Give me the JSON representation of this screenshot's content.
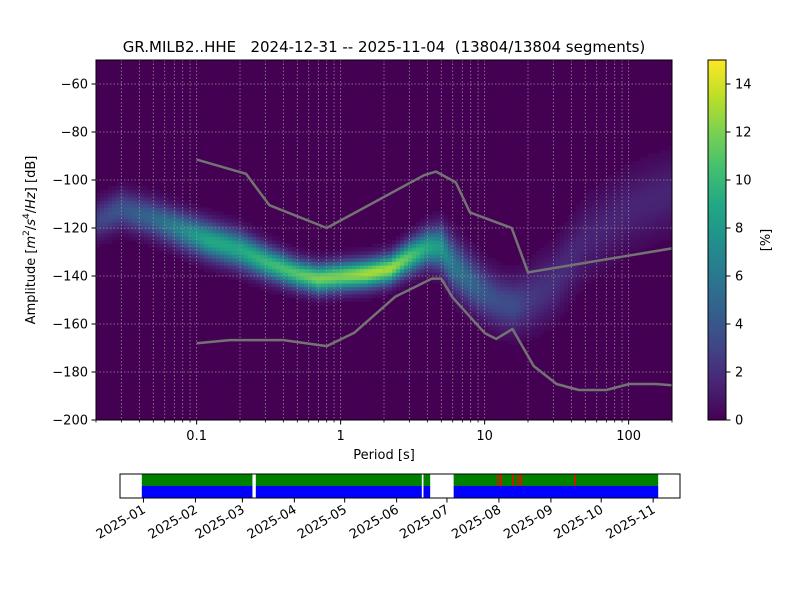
{
  "chart_data": [
    {
      "type": "heatmap",
      "title": "GR.MILB2..HHE   2024-12-31 -- 2025-11-04  (13804/13804 segments)",
      "xlabel": "Period [s]",
      "ylabel": "Amplitude [m²/s⁴/Hz] [dB]",
      "xscale": "log",
      "xlim": [
        0.02,
        200
      ],
      "ylim": [
        -200,
        -50
      ],
      "x_ticks": [
        {
          "value": 0.1,
          "label": "0.1"
        },
        {
          "value": 1,
          "label": "1"
        },
        {
          "value": 10,
          "label": "10"
        },
        {
          "value": 100,
          "label": "100"
        }
      ],
      "y_ticks": [
        {
          "value": -60,
          "label": "−60"
        },
        {
          "value": -80,
          "label": "−80"
        },
        {
          "value": -100,
          "label": "−100"
        },
        {
          "value": -120,
          "label": "−120"
        },
        {
          "value": -140,
          "label": "−140"
        },
        {
          "value": -160,
          "label": "−160"
        },
        {
          "value": -180,
          "label": "−180"
        },
        {
          "value": -200,
          "label": "−200"
        }
      ],
      "grid": true,
      "colormap": "viridis",
      "colorbar": {
        "label": "[%]",
        "range": [
          0,
          15
        ],
        "ticks": [
          {
            "value": 0,
            "label": "0"
          },
          {
            "value": 2,
            "label": "2"
          },
          {
            "value": 4,
            "label": "4"
          },
          {
            "value": 6,
            "label": "6"
          },
          {
            "value": 8,
            "label": "8"
          },
          {
            "value": 10,
            "label": "10"
          },
          {
            "value": 12,
            "label": "12"
          },
          {
            "value": 14,
            "label": "14"
          }
        ]
      },
      "psd_mode": {
        "period": [
          0.02,
          0.03,
          0.05,
          0.08,
          0.12,
          0.2,
          0.3,
          0.5,
          0.7,
          1.0,
          1.5,
          2.2,
          3.0,
          4.0,
          5.0,
          6.0,
          8.0,
          10,
          13,
          16,
          20,
          30,
          50,
          100,
          200
        ],
        "db": [
          -117,
          -112,
          -116,
          -121,
          -125,
          -129,
          -134,
          -139,
          -141,
          -140,
          -139,
          -137,
          -132,
          -128,
          -128,
          -135,
          -142,
          -147,
          -151,
          -152,
          -150,
          -143,
          -125,
          -112,
          -105
        ],
        "peak_percent": [
          3,
          4,
          5,
          7,
          9,
          9,
          10,
          11,
          12,
          12,
          13,
          13,
          11,
          9,
          8,
          6,
          5,
          4,
          3.5,
          3.5,
          2.5,
          2,
          1.5,
          1.5,
          1.5
        ],
        "spread_db": [
          5,
          5,
          5,
          5,
          5,
          5,
          4.5,
          4,
          4,
          4,
          4,
          4,
          4.5,
          5,
          6,
          7,
          7,
          7,
          7,
          7,
          8,
          9,
          10,
          10,
          10
        ]
      },
      "noise_models": {
        "nhnm": {
          "period": [
            0.1,
            0.22,
            0.32,
            0.8,
            3.8,
            4.6,
            6.3,
            7.9,
            15.4,
            20,
            200
          ],
          "db": [
            -91.5,
            -97.4,
            -110.5,
            -120,
            -98,
            -96.5,
            -101,
            -113.5,
            -120,
            -138.5,
            -128.5
          ]
        },
        "nlnm": {
          "period": [
            0.1,
            0.17,
            0.4,
            0.8,
            1.24,
            2.4,
            4.3,
            5,
            6,
            10,
            12,
            15.6,
            21.9,
            31.6,
            45,
            70,
            101,
            154,
            200
          ],
          "db": [
            -168,
            -166.7,
            -166.7,
            -169.2,
            -163.7,
            -148.6,
            -141.1,
            -141.1,
            -149,
            -163.8,
            -166.2,
            -162.1,
            -177.5,
            -185,
            -187.5,
            -187.5,
            -185,
            -185,
            -185.5
          ]
        }
      }
    },
    {
      "type": "timeline",
      "x_ticks": [
        {
          "date": "2025-01-01",
          "label": "2025-01"
        },
        {
          "date": "2025-02-01",
          "label": "2025-02"
        },
        {
          "date": "2025-03-01",
          "label": "2025-03"
        },
        {
          "date": "2025-04-01",
          "label": "2025-04"
        },
        {
          "date": "2025-05-01",
          "label": "2025-05"
        },
        {
          "date": "2025-06-01",
          "label": "2025-06"
        },
        {
          "date": "2025-07-01",
          "label": "2025-07"
        },
        {
          "date": "2025-08-01",
          "label": "2025-08"
        },
        {
          "date": "2025-09-01",
          "label": "2025-09"
        },
        {
          "date": "2025-10-01",
          "label": "2025-10"
        },
        {
          "date": "2025-11-01",
          "label": "2025-11"
        }
      ],
      "xlim": [
        "2024-12-18",
        "2025-11-17"
      ],
      "data_coverage": [
        {
          "start": "2024-12-31",
          "end": "2025-03-07",
          "color": "#0000ff"
        },
        {
          "start": "2025-03-09",
          "end": "2025-06-16",
          "color": "#0000ff"
        },
        {
          "start": "2025-06-17",
          "end": "2025-06-21",
          "color": "#0000ff"
        },
        {
          "start": "2025-07-05",
          "end": "2025-11-04",
          "color": "#0000ff"
        }
      ],
      "psd_coverage": [
        {
          "start": "2024-12-31",
          "end": "2025-03-07",
          "color": "#008000"
        },
        {
          "start": "2025-03-09",
          "end": "2025-06-16",
          "color": "#008000"
        },
        {
          "start": "2025-06-17",
          "end": "2025-06-21",
          "color": "#008000"
        },
        {
          "start": "2025-07-05",
          "end": "2025-11-04",
          "color": "#008000"
        }
      ],
      "markers": [
        {
          "date": "2025-07-31",
          "color": "#ff0000"
        },
        {
          "date": "2025-08-02",
          "color": "#ff0000"
        },
        {
          "date": "2025-08-09",
          "color": "#ff0000"
        },
        {
          "date": "2025-08-12",
          "color": "#ff0000"
        },
        {
          "date": "2025-08-14",
          "color": "#ff0000"
        },
        {
          "date": "2025-09-15",
          "color": "#ff0000"
        }
      ]
    }
  ]
}
